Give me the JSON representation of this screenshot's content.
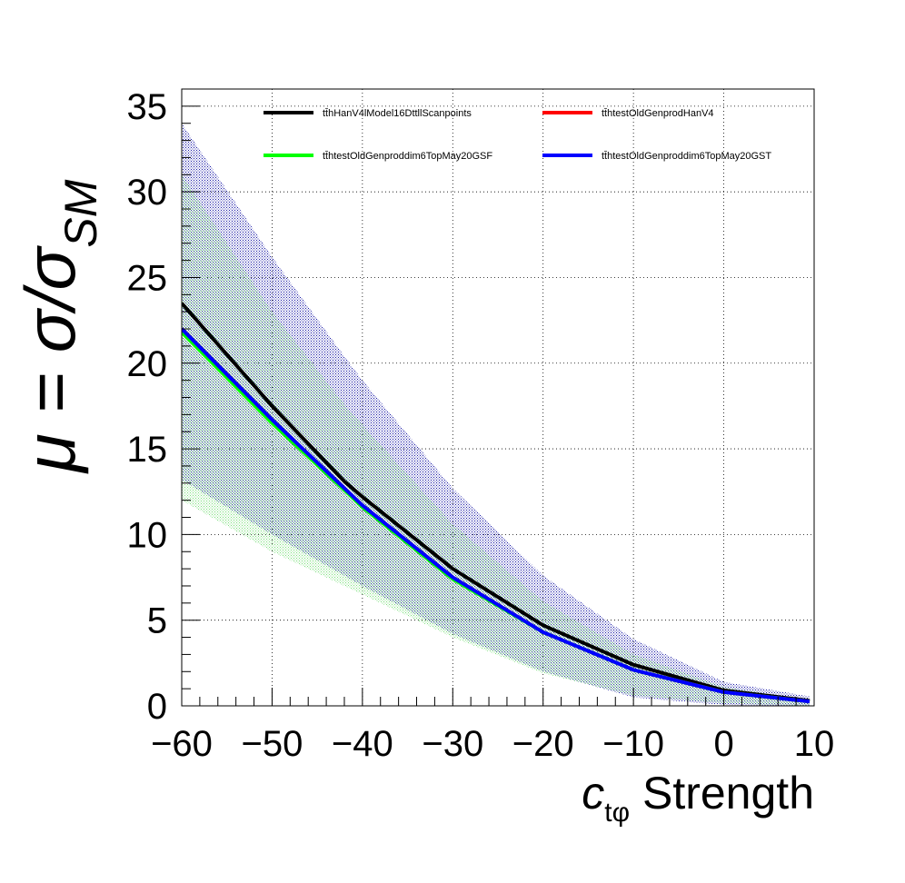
{
  "chart_data": {
    "type": "line",
    "xlabel": "c_tφ Strength",
    "xlabel_main": "c",
    "xlabel_sub": "tφ",
    "xlabel_rest": " Strength",
    "ylabel": "μ = σ/σ_SM",
    "ylabel_main": "μ = σ/σ",
    "ylabel_sub": "SM",
    "xlim": [
      -60,
      10
    ],
    "ylim": [
      0,
      36
    ],
    "grid": true,
    "legend_position": "top",
    "x_ticks": [
      -60,
      -50,
      -40,
      -30,
      -20,
      -10,
      0,
      10
    ],
    "x_tick_labels": [
      "−60",
      "−50",
      "−40",
      "−30",
      "−20",
      "−10",
      "0",
      "10"
    ],
    "y_ticks": [
      0,
      5,
      10,
      15,
      20,
      25,
      30,
      35
    ],
    "y_tick_labels": [
      "0",
      "5",
      "10",
      "15",
      "20",
      "25",
      "30",
      "35"
    ],
    "x": [
      -60,
      -50,
      -42,
      -40,
      -30,
      -20,
      -10,
      0,
      9.5
    ],
    "series": [
      {
        "name": "tt̄hHanV4lModel16DttllScanpoints",
        "color": "#000000",
        "values": [
          23.5,
          17.5,
          13.1,
          12.2,
          8.0,
          4.7,
          2.4,
          0.9,
          0.3
        ]
      },
      {
        "name": "tt̄htestOldGenprodHanV4",
        "color": "#ff0000",
        "values": [
          22.0,
          16.7,
          12.7,
          11.7,
          7.5,
          4.3,
          2.1,
          0.8,
          0.25
        ]
      },
      {
        "name": "tt̄htestOldGenproddim6TopMay20GSF",
        "color": "#00ff00",
        "values": [
          21.8,
          16.5,
          12.6,
          11.6,
          7.4,
          4.3,
          2.1,
          0.8,
          0.25
        ]
      },
      {
        "name": "tt̄htestOldGenproddim6TopMay20GST",
        "color": "#0000ff",
        "values": [
          22.0,
          16.7,
          12.7,
          11.7,
          7.5,
          4.3,
          2.1,
          0.8,
          0.25
        ]
      }
    ],
    "bands": [
      {
        "color": "#1a1aa6",
        "upper": [
          34.0,
          26.2,
          20.4,
          19.0,
          12.7,
          7.6,
          3.9,
          1.4,
          0.55
        ],
        "lower": [
          13.2,
          10.0,
          7.6,
          7.0,
          4.2,
          2.0,
          0.5,
          0.05,
          0.0
        ]
      },
      {
        "color": "#7fe07f",
        "upper": [
          31.0,
          23.0,
          17.6,
          16.4,
          10.6,
          6.1,
          3.0,
          1.1,
          0.35
        ],
        "lower": [
          12.0,
          9.0,
          7.0,
          6.5,
          4.0,
          1.9,
          0.6,
          0.15,
          0.0
        ]
      }
    ]
  }
}
